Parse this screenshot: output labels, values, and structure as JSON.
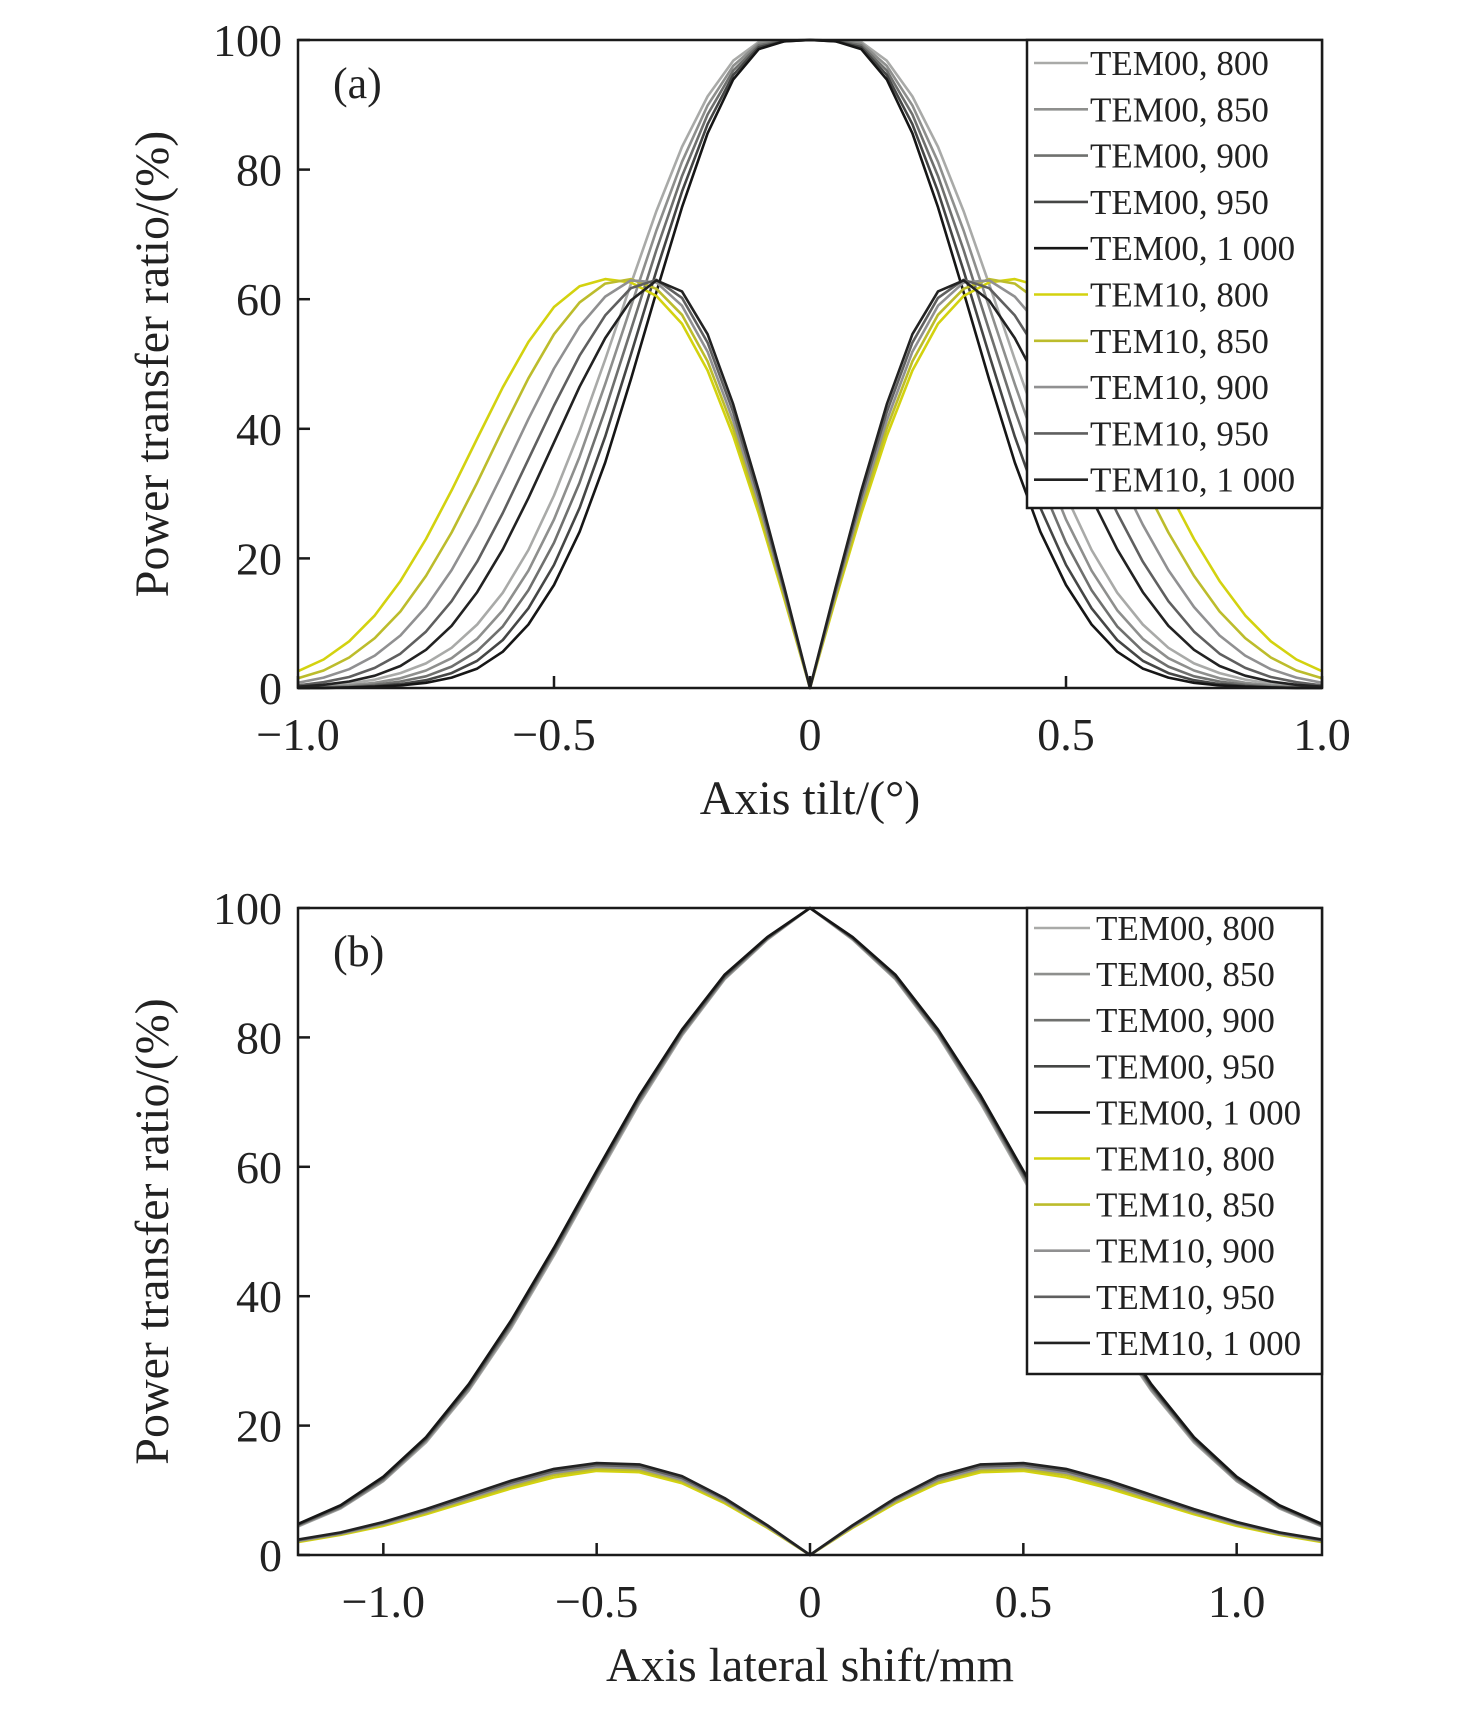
{
  "colors": {
    "TEM00, 800": "#a9aaa8",
    "TEM00, 850": "#8e8f8d",
    "TEM00, 900": "#6f706e",
    "TEM00, 950": "#454645",
    "TEM00, 1 000": "#161616",
    "TEM10, 800": "#d3d20f",
    "TEM10, 850": "#bcbc2c",
    "TEM10, 900": "#909091",
    "TEM10, 950": "#5f5f5f",
    "TEM10, 1 000": "#222222",
    "accent_teal": "#36bfa9"
  },
  "chart_data": [
    {
      "panel": "(a)",
      "type": "line",
      "xlabel": "Axis tilt/(°)",
      "ylabel": "Power transfer ratio/(%)",
      "xlim": [
        -1.0,
        1.0
      ],
      "ylim": [
        0,
        100
      ],
      "xticks": [
        -1.0,
        -0.5,
        0,
        0.5,
        1.0
      ],
      "xtick_labels": [
        "−1.0",
        "−0.5",
        "0",
        "0.5",
        "1.0"
      ],
      "yticks": [
        0,
        20,
        40,
        60,
        80,
        100
      ],
      "ytick_labels": [
        "0",
        "20",
        "40",
        "60",
        "80",
        "100"
      ],
      "grid": false,
      "legend_position": "top-right",
      "x": [
        -1.0,
        -0.95,
        -0.9,
        -0.85,
        -0.8,
        -0.75,
        -0.7,
        -0.65,
        -0.6,
        -0.55,
        -0.5,
        -0.45,
        -0.4,
        -0.35,
        -0.3,
        -0.25,
        -0.2,
        -0.15,
        -0.1,
        -0.05,
        0,
        0.05,
        0.1,
        0.15,
        0.2,
        0.25,
        0.3,
        0.35,
        0.4,
        0.45,
        0.5,
        0.55,
        0.6,
        0.65,
        0.7,
        0.75,
        0.8,
        0.85,
        0.9,
        0.95,
        1.0
      ],
      "series": [
        {
          "name": "TEM00, 800",
          "values": [
            0.2,
            0.4,
            0.7,
            1.3,
            2.3,
            3.8,
            6.2,
            9.8,
            14.7,
            21.3,
            29.7,
            39.6,
            50.7,
            62.3,
            73.6,
            83.5,
            91.3,
            96.8,
            99.7,
            99.9,
            100,
            99.9,
            99.7,
            96.8,
            91.3,
            83.5,
            73.6,
            62.3,
            50.7,
            39.6,
            29.7,
            21.3,
            14.7,
            9.8,
            6.2,
            3.8,
            2.3,
            1.3,
            0.7,
            0.4,
            0.2
          ]
        },
        {
          "name": "TEM00, 850",
          "values": [
            0.1,
            0.2,
            0.4,
            0.8,
            1.5,
            2.7,
            4.6,
            7.6,
            12.0,
            18.1,
            26.0,
            35.7,
            46.9,
            58.8,
            70.6,
            81.2,
            89.9,
            96.0,
            99.5,
            99.9,
            100,
            99.9,
            99.5,
            96.0,
            89.9,
            81.2,
            70.6,
            58.8,
            46.9,
            35.7,
            26.0,
            18.1,
            12.0,
            7.6,
            4.6,
            2.7,
            1.5,
            0.8,
            0.4,
            0.2,
            0.1
          ]
        },
        {
          "name": "TEM00, 900",
          "values": [
            0.0,
            0.1,
            0.2,
            0.5,
            1.0,
            1.8,
            3.3,
            5.7,
            9.5,
            15.1,
            22.4,
            31.7,
            42.9,
            55.2,
            67.6,
            79.0,
            88.5,
            95.3,
            99.2,
            99.9,
            100,
            99.9,
            99.2,
            95.3,
            88.5,
            79.0,
            67.6,
            55.2,
            42.9,
            31.7,
            22.4,
            15.1,
            9.5,
            5.7,
            3.3,
            1.8,
            1.0,
            0.5,
            0.2,
            0.1,
            0.0
          ]
        },
        {
          "name": "TEM00, 950",
          "values": [
            0.0,
            0.0,
            0.1,
            0.3,
            0.6,
            1.2,
            2.3,
            4.2,
            7.4,
            12.3,
            19.0,
            27.8,
            38.8,
            51.4,
            64.4,
            76.6,
            87.0,
            94.6,
            98.9,
            99.8,
            100,
            99.8,
            98.9,
            94.6,
            87.0,
            76.6,
            64.4,
            51.4,
            38.8,
            27.8,
            19.0,
            12.3,
            7.4,
            4.2,
            2.3,
            1.2,
            0.6,
            0.3,
            0.1,
            0.0,
            0.0
          ]
        },
        {
          "name": "TEM00, 1 000",
          "values": [
            0.0,
            0.0,
            0.1,
            0.2,
            0.4,
            0.8,
            1.6,
            3.0,
            5.6,
            9.8,
            15.9,
            24.1,
            34.8,
            47.6,
            61.1,
            74.2,
            85.6,
            93.9,
            98.6,
            99.8,
            100,
            99.8,
            98.6,
            93.9,
            85.6,
            74.2,
            61.1,
            47.6,
            34.8,
            24.1,
            15.9,
            9.8,
            5.6,
            3.0,
            1.6,
            0.8,
            0.4,
            0.2,
            0.1,
            0.0,
            0.0
          ]
        },
        {
          "name": "TEM10, 800",
          "values": [
            2.6,
            4.4,
            7.2,
            11.2,
            16.5,
            23.0,
            30.5,
            38.5,
            46.4,
            53.4,
            58.8,
            62.0,
            63.1,
            62.6,
            60.5,
            56.2,
            49.0,
            38.9,
            26.9,
            13.7,
            0,
            13.7,
            26.9,
            38.9,
            49.0,
            56.2,
            60.5,
            62.6,
            63.1,
            62.0,
            58.8,
            53.4,
            46.4,
            38.5,
            30.5,
            23.0,
            16.5,
            11.2,
            7.2,
            4.4,
            2.6
          ]
        },
        {
          "name": "TEM10, 850",
          "values": [
            1.5,
            2.7,
            4.7,
            7.7,
            11.8,
            17.3,
            24.0,
            31.7,
            39.9,
            47.8,
            54.6,
            59.5,
            62.4,
            63.1,
            61.6,
            57.6,
            50.4,
            40.1,
            27.7,
            14.1,
            0,
            14.1,
            27.7,
            40.1,
            50.4,
            57.6,
            61.6,
            63.1,
            62.4,
            59.5,
            54.6,
            47.8,
            39.9,
            31.7,
            24.0,
            17.3,
            11.8,
            7.7,
            4.7,
            2.7,
            1.5
          ]
        },
        {
          "name": "TEM10, 900",
          "values": [
            0.8,
            1.6,
            2.9,
            5.0,
            8.1,
            12.5,
            18.2,
            25.2,
            33.2,
            41.5,
            49.3,
            55.8,
            60.4,
            62.9,
            62.6,
            59.0,
            51.9,
            41.3,
            28.6,
            14.6,
            0,
            14.6,
            28.6,
            41.3,
            51.9,
            59.0,
            62.6,
            62.9,
            60.4,
            55.8,
            49.3,
            41.5,
            33.2,
            25.2,
            18.2,
            12.5,
            8.1,
            5.0,
            2.9,
            1.6,
            0.8
          ]
        },
        {
          "name": "TEM10, 950",
          "values": [
            0.4,
            0.9,
            1.7,
            3.1,
            5.3,
            8.7,
            13.4,
            19.5,
            27.0,
            35.3,
            43.6,
            51.3,
            57.5,
            61.7,
            63.0,
            60.2,
            53.3,
            42.6,
            29.5,
            15.0,
            0,
            15.0,
            29.5,
            42.6,
            53.3,
            60.2,
            63.0,
            61.7,
            57.5,
            51.3,
            43.6,
            35.3,
            27.0,
            19.5,
            13.4,
            8.7,
            5.3,
            3.1,
            1.7,
            0.9,
            0.4
          ]
        },
        {
          "name": "TEM10, 1 000",
          "values": [
            0.2,
            0.5,
            1.0,
            1.9,
            3.4,
            5.9,
            9.6,
            14.8,
            21.4,
            29.3,
            37.9,
            46.5,
            54.0,
            59.8,
            62.9,
            61.2,
            54.6,
            43.8,
            30.4,
            15.5,
            0,
            15.5,
            30.4,
            43.8,
            54.6,
            61.2,
            62.9,
            59.8,
            54.0,
            46.5,
            37.9,
            29.3,
            21.4,
            14.8,
            9.6,
            5.9,
            3.4,
            1.9,
            1.0,
            0.5,
            0.2
          ]
        }
      ]
    },
    {
      "panel": "(b)",
      "type": "line",
      "xlabel": "Axis lateral shift/mm",
      "ylabel": "Power transfer ratio/(%)",
      "xlim": [
        -1.2,
        1.2
      ],
      "ylim": [
        0,
        100
      ],
      "xticks": [
        -1.0,
        -0.5,
        0,
        0.5,
        1.0
      ],
      "xtick_labels": [
        "−1.0",
        "−0.5",
        "0",
        "0.5",
        "1.0"
      ],
      "yticks": [
        0,
        20,
        40,
        60,
        80,
        100
      ],
      "ytick_labels": [
        "0",
        "20",
        "40",
        "60",
        "80",
        "100"
      ],
      "grid": false,
      "legend_position": "top-right",
      "x": [
        -1.2,
        -1.1,
        -1.0,
        -0.9,
        -0.8,
        -0.7,
        -0.6,
        -0.5,
        -0.4,
        -0.3,
        -0.2,
        -0.1,
        0,
        0.1,
        0.2,
        0.3,
        0.4,
        0.5,
        0.6,
        0.7,
        0.8,
        0.9,
        1.0,
        1.1,
        1.2
      ],
      "series": [
        {
          "name": "TEM00, 800",
          "values": [
            4.4,
            7.2,
            11.4,
            17.4,
            25.4,
            35.1,
            46.3,
            58.2,
            69.8,
            80.3,
            89.0,
            95.1,
            100,
            95.1,
            89.0,
            80.3,
            69.8,
            58.2,
            46.3,
            35.1,
            25.4,
            17.4,
            11.4,
            7.2,
            4.4
          ]
        },
        {
          "name": "TEM00, 850",
          "values": [
            4.5,
            7.3,
            11.5,
            17.6,
            25.6,
            35.4,
            46.6,
            58.5,
            70.1,
            80.5,
            89.1,
            95.2,
            100,
            95.2,
            89.1,
            80.5,
            70.1,
            58.5,
            46.6,
            35.4,
            25.6,
            17.6,
            11.5,
            7.3,
            4.5
          ]
        },
        {
          "name": "TEM00, 900",
          "values": [
            4.6,
            7.4,
            11.7,
            17.8,
            25.9,
            35.7,
            46.9,
            58.8,
            70.4,
            80.7,
            89.3,
            95.3,
            100,
            95.3,
            89.3,
            80.7,
            70.4,
            58.8,
            46.9,
            35.7,
            25.9,
            17.8,
            11.7,
            7.4,
            4.6
          ]
        },
        {
          "name": "TEM00, 950",
          "values": [
            4.7,
            7.6,
            11.9,
            18.0,
            26.1,
            36.0,
            47.2,
            59.1,
            70.7,
            81.0,
            89.5,
            95.4,
            100,
            95.4,
            89.5,
            81.0,
            70.7,
            59.1,
            47.2,
            36.0,
            26.1,
            18.0,
            11.9,
            7.6,
            4.7
          ]
        },
        {
          "name": "TEM00, 1 000",
          "values": [
            4.8,
            7.7,
            12.1,
            18.2,
            26.4,
            36.3,
            47.5,
            59.4,
            71.0,
            81.2,
            89.7,
            95.5,
            100,
            95.5,
            89.7,
            81.2,
            71.0,
            59.4,
            47.5,
            36.3,
            26.4,
            18.2,
            12.1,
            7.7,
            4.8
          ]
        },
        {
          "name": "TEM10, 800",
          "values": [
            2.0,
            3.1,
            4.5,
            6.3,
            8.3,
            10.3,
            12.0,
            13.0,
            12.8,
            11.1,
            8.0,
            4.2,
            0,
            4.2,
            8.0,
            11.1,
            12.8,
            13.0,
            12.0,
            10.3,
            8.3,
            6.3,
            4.5,
            3.1,
            2.0
          ]
        },
        {
          "name": "TEM10, 850",
          "values": [
            2.1,
            3.2,
            4.7,
            6.5,
            8.6,
            10.6,
            12.4,
            13.3,
            13.1,
            11.4,
            8.2,
            4.3,
            0,
            4.3,
            8.2,
            11.4,
            13.1,
            13.3,
            12.4,
            10.6,
            8.6,
            6.5,
            4.7,
            3.2,
            2.1
          ]
        },
        {
          "name": "TEM10, 900",
          "values": [
            2.2,
            3.3,
            4.8,
            6.7,
            8.8,
            10.9,
            12.7,
            13.6,
            13.4,
            11.6,
            8.4,
            4.4,
            0,
            4.4,
            8.4,
            11.6,
            13.4,
            13.6,
            12.7,
            10.9,
            8.8,
            6.7,
            4.8,
            3.3,
            2.2
          ]
        },
        {
          "name": "TEM10, 950",
          "values": [
            2.3,
            3.4,
            5.0,
            6.9,
            9.0,
            11.2,
            13.0,
            13.9,
            13.7,
            11.9,
            8.6,
            4.5,
            0,
            4.5,
            8.6,
            11.9,
            13.7,
            13.9,
            13.0,
            11.2,
            9.0,
            6.9,
            5.0,
            3.4,
            2.3
          ]
        },
        {
          "name": "TEM10, 1 000",
          "values": [
            2.4,
            3.5,
            5.1,
            7.1,
            9.3,
            11.5,
            13.3,
            14.2,
            14.0,
            12.2,
            8.8,
            4.6,
            0,
            4.6,
            8.8,
            12.2,
            14.0,
            14.2,
            13.3,
            11.5,
            9.3,
            7.1,
            5.1,
            3.5,
            2.4
          ]
        }
      ]
    }
  ]
}
